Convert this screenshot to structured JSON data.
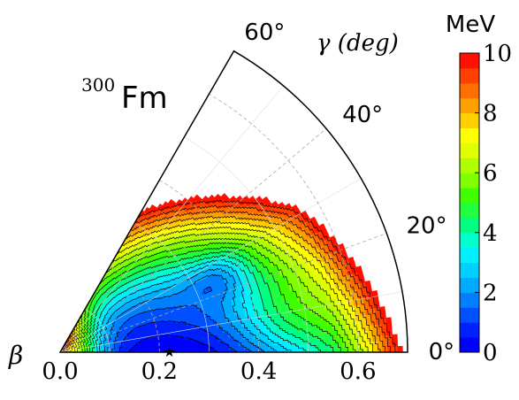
{
  "chart_data": {
    "type": "heatmap",
    "nucleus": {
      "mass": "300",
      "element": "Fm"
    },
    "colorbar": {
      "unit": "MeV",
      "range": [
        0,
        10
      ],
      "ticks": [
        "0",
        "2",
        "4",
        "6",
        "8",
        "10"
      ],
      "levels": 20,
      "colors": [
        "#0000ff",
        "#0020ff",
        "#0050ff",
        "#0080ff",
        "#00aaff",
        "#00d0ff",
        "#00f0ff",
        "#00ffcc",
        "#00ff80",
        "#20ff40",
        "#40ff00",
        "#80ff00",
        "#b0ff00",
        "#e0ff00",
        "#ffff00",
        "#ffd000",
        "#ffa000",
        "#ff7000",
        "#ff4000",
        "#ff1000"
      ]
    },
    "beta_axis": {
      "label": "β",
      "range": [
        0,
        0.7
      ],
      "ticks": [
        "0.0",
        "0.2",
        "0.4",
        "0.6"
      ]
    },
    "gamma_axis": {
      "label": "γ (deg)",
      "range": [
        0,
        60
      ],
      "ticks": [
        "0°",
        "20°",
        "40°",
        "60°"
      ]
    },
    "minimum": {
      "beta": 0.22,
      "gamma": 0,
      "energy": 0
    },
    "energy_features": [
      {
        "beta": 0.22,
        "gamma": 0,
        "energy": 0
      },
      {
        "beta": 0.22,
        "gamma": 15,
        "energy": 1.5
      },
      {
        "beta": 0.35,
        "gamma": 25,
        "energy": 2.5
      },
      {
        "beta": 0.45,
        "gamma": 8,
        "energy": 3.5
      },
      {
        "beta": 0.6,
        "gamma": 2,
        "energy": 4.5
      },
      {
        "beta": 0.0,
        "gamma": 0,
        "energy": 6.5
      },
      {
        "beta": 0.45,
        "gamma": 45,
        "energy": 8.0
      },
      {
        "beta": 0.65,
        "gamma": 20,
        "energy": 6.5
      }
    ],
    "contour_interval": 0.5,
    "grid": true
  }
}
